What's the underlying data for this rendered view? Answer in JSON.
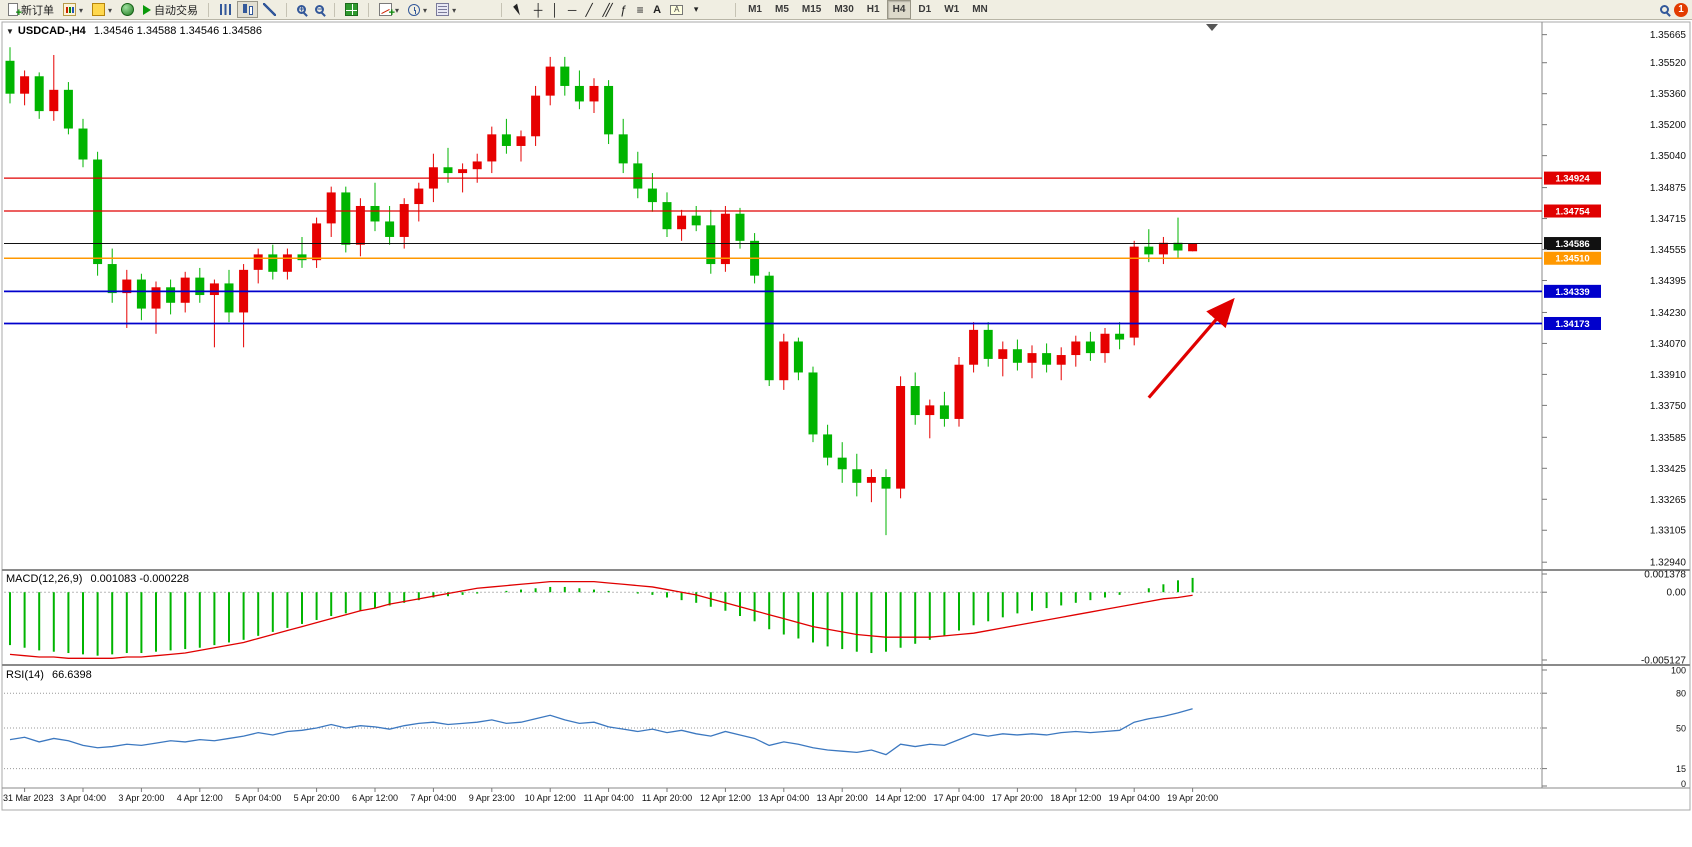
{
  "toolbar": {
    "new_order": "新订单",
    "auto_trading": "自动交易",
    "timeframes": [
      "M1",
      "M5",
      "M15",
      "M30",
      "H1",
      "H4",
      "D1",
      "W1",
      "MN"
    ],
    "active_timeframe": "H4",
    "notification_count": "1"
  },
  "chart_data": {
    "type": "candlestick",
    "symbol_title": "USDCAD-,H4",
    "ohlc_text": "1.34546 1.34588 1.34546 1.34586",
    "period": "H4",
    "colors": {
      "up": "#e60000",
      "down": "#00b400",
      "background": "#ffffff"
    },
    "y_range": {
      "max": 1.3572,
      "min": 1.3291
    },
    "price_axis_labels": [
      "1.35665",
      "1.35520",
      "1.35360",
      "1.35200",
      "1.35040",
      "1.34875",
      "1.34715",
      "1.34555",
      "1.34395",
      "1.34230",
      "1.34070",
      "1.33910",
      "1.33750",
      "1.33585",
      "1.33425",
      "1.33265",
      "1.33105",
      "1.32940"
    ],
    "time_labels": [
      "31 Mar 2023",
      "3 Apr 04:00",
      "3 Apr 20:00",
      "4 Apr 12:00",
      "5 Apr 04:00",
      "5 Apr 20:00",
      "6 Apr 12:00",
      "7 Apr 04:00",
      "9 Apr 23:00",
      "10 Apr 12:00",
      "11 Apr 04:00",
      "11 Apr 20:00",
      "12 Apr 12:00",
      "13 Apr 04:00",
      "13 Apr 20:00",
      "14 Apr 12:00",
      "17 Apr 04:00",
      "17 Apr 20:00",
      "18 Apr 12:00",
      "19 Apr 04:00",
      "19 Apr 20:00"
    ],
    "levels": [
      {
        "name": "resistance-line-1",
        "price": 1.34924,
        "label": "1.34924",
        "color": "#e00000",
        "width": 1.2
      },
      {
        "name": "resistance-line-2",
        "price": 1.34754,
        "label": "1.34754",
        "color": "#e00000",
        "width": 1.2
      },
      {
        "name": "bid-price-line",
        "price": 1.34586,
        "label": "1.34586",
        "color": "#111111",
        "width": 1
      },
      {
        "name": "pivot-line",
        "price": 1.3451,
        "label": "1.34510",
        "color": "#ff9800",
        "width": 1.6
      },
      {
        "name": "support-line-1",
        "price": 1.34339,
        "label": "1.34339",
        "color": "#0000cc",
        "width": 1.8
      },
      {
        "name": "support-line-2",
        "price": 1.34173,
        "label": "1.34173",
        "color": "#0000cc",
        "width": 1.8
      }
    ],
    "annotation_arrow": {
      "from": {
        "bar": 78,
        "price": 1.3379
      },
      "to": {
        "bar": 83.6,
        "price": 1.3428
      },
      "color": "#e00000"
    },
    "candles": [
      [
        1.3553,
        1.356,
        1.3531,
        1.3536
      ],
      [
        1.3536,
        1.3548,
        1.353,
        1.3545
      ],
      [
        1.3545,
        1.3547,
        1.3523,
        1.3527
      ],
      [
        1.3527,
        1.3556,
        1.3522,
        1.3538
      ],
      [
        1.3538,
        1.3542,
        1.3515,
        1.3518
      ],
      [
        1.3518,
        1.3523,
        1.3498,
        1.3502
      ],
      [
        1.3502,
        1.3506,
        1.3442,
        1.3448
      ],
      [
        1.3448,
        1.3456,
        1.3428,
        1.3433
      ],
      [
        1.3433,
        1.3445,
        1.3415,
        1.344
      ],
      [
        1.344,
        1.3443,
        1.3419,
        1.3425
      ],
      [
        1.3425,
        1.3439,
        1.3412,
        1.3436
      ],
      [
        1.3436,
        1.344,
        1.3422,
        1.3428
      ],
      [
        1.3428,
        1.3444,
        1.3423,
        1.3441
      ],
      [
        1.3441,
        1.3446,
        1.3428,
        1.3432
      ],
      [
        1.3432,
        1.344,
        1.3405,
        1.3438
      ],
      [
        1.3438,
        1.3445,
        1.3418,
        1.3423
      ],
      [
        1.3423,
        1.3448,
        1.3405,
        1.3445
      ],
      [
        1.3445,
        1.3456,
        1.3438,
        1.3453
      ],
      [
        1.3453,
        1.3458,
        1.344,
        1.3444
      ],
      [
        1.3444,
        1.3456,
        1.344,
        1.3453
      ],
      [
        1.3453,
        1.3462,
        1.3446,
        1.345
      ],
      [
        1.345,
        1.3472,
        1.3446,
        1.3469
      ],
      [
        1.3469,
        1.3488,
        1.3462,
        1.3485
      ],
      [
        1.3485,
        1.3488,
        1.3454,
        1.3458
      ],
      [
        1.3458,
        1.3482,
        1.3452,
        1.3478
      ],
      [
        1.3478,
        1.349,
        1.3465,
        1.347
      ],
      [
        1.347,
        1.3478,
        1.3458,
        1.3462
      ],
      [
        1.3462,
        1.3482,
        1.3456,
        1.3479
      ],
      [
        1.3479,
        1.349,
        1.347,
        1.3487
      ],
      [
        1.3487,
        1.3505,
        1.348,
        1.3498
      ],
      [
        1.3498,
        1.3508,
        1.349,
        1.3495
      ],
      [
        1.3495,
        1.35,
        1.3485,
        1.3497
      ],
      [
        1.3497,
        1.3505,
        1.349,
        1.3501
      ],
      [
        1.3501,
        1.3519,
        1.3495,
        1.3515
      ],
      [
        1.3515,
        1.3523,
        1.3505,
        1.3509
      ],
      [
        1.3509,
        1.3517,
        1.3501,
        1.3514
      ],
      [
        1.3514,
        1.354,
        1.3509,
        1.3535
      ],
      [
        1.3535,
        1.3555,
        1.353,
        1.355
      ],
      [
        1.355,
        1.3555,
        1.3535,
        1.354
      ],
      [
        1.354,
        1.3548,
        1.3528,
        1.3532
      ],
      [
        1.3532,
        1.3544,
        1.3526,
        1.354
      ],
      [
        1.354,
        1.3543,
        1.351,
        1.3515
      ],
      [
        1.3515,
        1.3523,
        1.3495,
        1.35
      ],
      [
        1.35,
        1.3506,
        1.3482,
        1.3487
      ],
      [
        1.3487,
        1.3495,
        1.3475,
        1.348
      ],
      [
        1.348,
        1.3485,
        1.3462,
        1.3466
      ],
      [
        1.3466,
        1.3476,
        1.346,
        1.3473
      ],
      [
        1.3473,
        1.3478,
        1.3465,
        1.3468
      ],
      [
        1.3468,
        1.3476,
        1.3443,
        1.3448
      ],
      [
        1.3448,
        1.3478,
        1.3444,
        1.3474
      ],
      [
        1.3474,
        1.3477,
        1.3456,
        1.346
      ],
      [
        1.346,
        1.3464,
        1.3438,
        1.3442
      ],
      [
        1.3442,
        1.3444,
        1.3385,
        1.3388
      ],
      [
        1.3388,
        1.3412,
        1.3383,
        1.3408
      ],
      [
        1.3408,
        1.341,
        1.3388,
        1.3392
      ],
      [
        1.3392,
        1.3395,
        1.3356,
        1.336
      ],
      [
        1.336,
        1.3365,
        1.3344,
        1.3348
      ],
      [
        1.3348,
        1.3356,
        1.3335,
        1.3342
      ],
      [
        1.3342,
        1.335,
        1.3328,
        1.3335
      ],
      [
        1.3335,
        1.3342,
        1.3325,
        1.3338
      ],
      [
        1.3338,
        1.3342,
        1.3308,
        1.3332
      ],
      [
        1.3332,
        1.339,
        1.3327,
        1.3385
      ],
      [
        1.3385,
        1.3392,
        1.3365,
        1.337
      ],
      [
        1.337,
        1.3378,
        1.3358,
        1.3375
      ],
      [
        1.3375,
        1.3382,
        1.3364,
        1.3368
      ],
      [
        1.3368,
        1.34,
        1.3364,
        1.3396
      ],
      [
        1.3396,
        1.3418,
        1.3392,
        1.3414
      ],
      [
        1.3414,
        1.3418,
        1.3395,
        1.3399
      ],
      [
        1.3399,
        1.3408,
        1.339,
        1.3404
      ],
      [
        1.3404,
        1.3409,
        1.3393,
        1.3397
      ],
      [
        1.3397,
        1.3406,
        1.3389,
        1.3402
      ],
      [
        1.3402,
        1.3407,
        1.3392,
        1.3396
      ],
      [
        1.3396,
        1.3405,
        1.3388,
        1.3401
      ],
      [
        1.3401,
        1.3411,
        1.3395,
        1.3408
      ],
      [
        1.3408,
        1.3413,
        1.3398,
        1.3402
      ],
      [
        1.3402,
        1.3415,
        1.3397,
        1.3412
      ],
      [
        1.3412,
        1.3418,
        1.3404,
        1.3409
      ],
      [
        1.341,
        1.346,
        1.3406,
        1.3457
      ],
      [
        1.3457,
        1.3466,
        1.3449,
        1.3453
      ],
      [
        1.3453,
        1.3462,
        1.3448,
        1.3459
      ],
      [
        1.3459,
        1.3472,
        1.3451,
        1.3455
      ],
      [
        1.34546,
        1.34588,
        1.34546,
        1.34586
      ]
    ],
    "indicators": {
      "macd": {
        "name": "MACD(12,26,9)",
        "values_text": "0.001083 -0.000228",
        "axis_labels": [
          {
            "text": "0.001378",
            "value": 0.001378
          },
          {
            "text": "0.00",
            "value": 0
          },
          {
            "text": "-0.005127",
            "value": -0.005127
          }
        ],
        "scale_max": 0.001378,
        "scale_min": -0.005127,
        "histogram_color": "#00b400",
        "signal_color": "#e00000",
        "histogram": [
          -0.004,
          -0.0042,
          -0.0044,
          -0.0045,
          -0.0046,
          -0.0047,
          -0.0048,
          -0.0047,
          -0.0046,
          -0.0046,
          -0.0045,
          -0.0044,
          -0.0043,
          -0.0042,
          -0.004,
          -0.0038,
          -0.0036,
          -0.0033,
          -0.003,
          -0.0027,
          -0.0024,
          -0.0021,
          -0.0018,
          -0.0016,
          -0.0014,
          -0.0012,
          -0.001,
          -0.0008,
          -0.0006,
          -0.0004,
          -0.0003,
          -0.0002,
          -0.0001,
          0.0,
          0.0001,
          0.0002,
          0.0003,
          0.0004,
          0.0004,
          0.0003,
          0.0002,
          0.0001,
          0.0,
          -0.0001,
          -0.0002,
          -0.0004,
          -0.0006,
          -0.0008,
          -0.0011,
          -0.0014,
          -0.0018,
          -0.0022,
          -0.0028,
          -0.0032,
          -0.0035,
          -0.0038,
          -0.0041,
          -0.0043,
          -0.0045,
          -0.0046,
          -0.0045,
          -0.0042,
          -0.0039,
          -0.0036,
          -0.0033,
          -0.0029,
          -0.0025,
          -0.0022,
          -0.0019,
          -0.0016,
          -0.0014,
          -0.0012,
          -0.001,
          -0.0008,
          -0.0006,
          -0.0004,
          -0.0002,
          0.0,
          0.0003,
          0.0006,
          0.0009,
          0.001083
        ],
        "signal": [
          -0.0047,
          -0.0048,
          -0.0049,
          -0.0049,
          -0.005,
          -0.005,
          -0.005,
          -0.005,
          -0.0049,
          -0.0049,
          -0.0048,
          -0.0047,
          -0.0046,
          -0.0044,
          -0.0042,
          -0.004,
          -0.0038,
          -0.0035,
          -0.0032,
          -0.0029,
          -0.0026,
          -0.0023,
          -0.002,
          -0.0017,
          -0.0014,
          -0.0012,
          -0.0009,
          -0.0007,
          -0.0005,
          -0.0003,
          -0.0001,
          0.0001,
          0.0003,
          0.0004,
          0.0005,
          0.0006,
          0.0007,
          0.0008,
          0.0008,
          0.0008,
          0.0008,
          0.0007,
          0.0006,
          0.0005,
          0.0004,
          0.0002,
          0.0,
          -0.0002,
          -0.0005,
          -0.0008,
          -0.0011,
          -0.0014,
          -0.0017,
          -0.002,
          -0.0023,
          -0.0026,
          -0.0028,
          -0.003,
          -0.0032,
          -0.0033,
          -0.0034,
          -0.0034,
          -0.0034,
          -0.0034,
          -0.0033,
          -0.0032,
          -0.0031,
          -0.0029,
          -0.0027,
          -0.0025,
          -0.0023,
          -0.0021,
          -0.0019,
          -0.0017,
          -0.0015,
          -0.0013,
          -0.0011,
          -0.0009,
          -0.0007,
          -0.0005,
          -0.0004,
          -0.000228
        ]
      },
      "rsi": {
        "name": "RSI(14)",
        "value_text": "66.6398",
        "axis_labels": [
          {
            "text": "100",
            "value": 100
          },
          {
            "text": "80",
            "value": 80
          },
          {
            "text": "50",
            "value": 50
          },
          {
            "text": "15",
            "value": 15
          },
          {
            "text": "0",
            "value": 0
          }
        ],
        "levels": [
          80,
          50,
          15
        ],
        "color": "#3c78c0",
        "values": [
          40,
          42,
          38,
          41,
          39,
          35,
          33,
          34,
          36,
          35,
          37,
          39,
          38,
          40,
          39,
          41,
          43,
          46,
          44,
          47,
          48,
          50,
          53,
          50,
          52,
          51,
          49,
          52,
          54,
          55,
          53,
          54,
          55,
          57,
          54,
          55,
          58,
          61,
          57,
          54,
          55,
          51,
          49,
          47,
          49,
          46,
          48,
          45,
          43,
          47,
          44,
          41,
          35,
          38,
          36,
          33,
          31,
          30,
          29,
          31,
          27,
          36,
          34,
          36,
          35,
          40,
          45,
          43,
          45,
          44,
          45,
          44,
          46,
          47,
          46,
          47,
          48,
          55,
          58,
          60,
          63,
          66.6398
        ]
      }
    }
  }
}
